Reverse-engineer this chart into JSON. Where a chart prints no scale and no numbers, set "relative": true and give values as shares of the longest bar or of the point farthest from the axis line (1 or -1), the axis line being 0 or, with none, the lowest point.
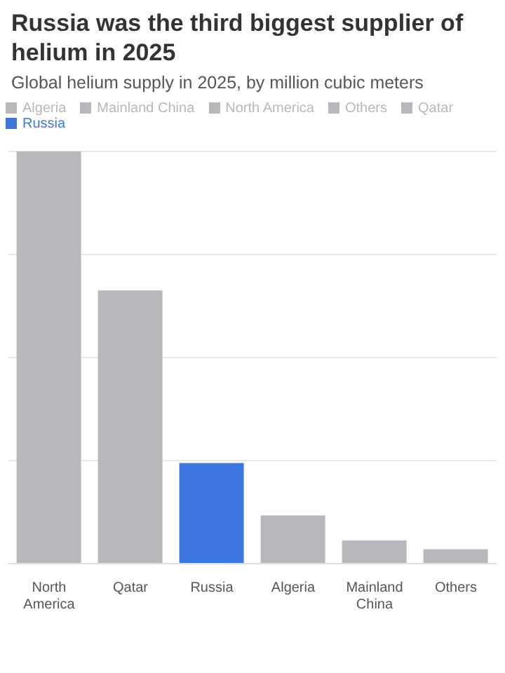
{
  "chart_data": {
    "type": "bar",
    "title": "Russia was the third biggest supplier of helium in 2025",
    "subtitle": "Global helium supply in 2025, by million cubic meters",
    "categories": [
      "North America",
      "Qatar",
      "Russia",
      "Algeria",
      "Mainland China",
      "Others"
    ],
    "series": [
      {
        "name": "North America",
        "color": "#b6b8bb",
        "values": [
          1,
          null,
          null,
          null,
          null,
          null
        ]
      },
      {
        "name": "Qatar",
        "color": "#b6b8bb",
        "values": [
          null,
          0.663,
          null,
          null,
          null,
          null
        ]
      },
      {
        "name": "Russia",
        "color": "#3c78e0",
        "values": [
          null,
          null,
          0.244,
          null,
          null,
          null
        ]
      },
      {
        "name": "Algeria",
        "color": "#b6b8bb",
        "values": [
          null,
          null,
          null,
          0.117,
          null,
          null
        ]
      },
      {
        "name": "Mainland China",
        "color": "#b6b8bb",
        "values": [
          null,
          null,
          null,
          null,
          0.056,
          null
        ]
      },
      {
        "name": "Others",
        "color": "#b6b8bb",
        "values": [
          null,
          null,
          null,
          null,
          null,
          0.035
        ]
      }
    ],
    "stacked": true,
    "relative": true,
    "grid": "y",
    "legend": "top left"
  }
}
